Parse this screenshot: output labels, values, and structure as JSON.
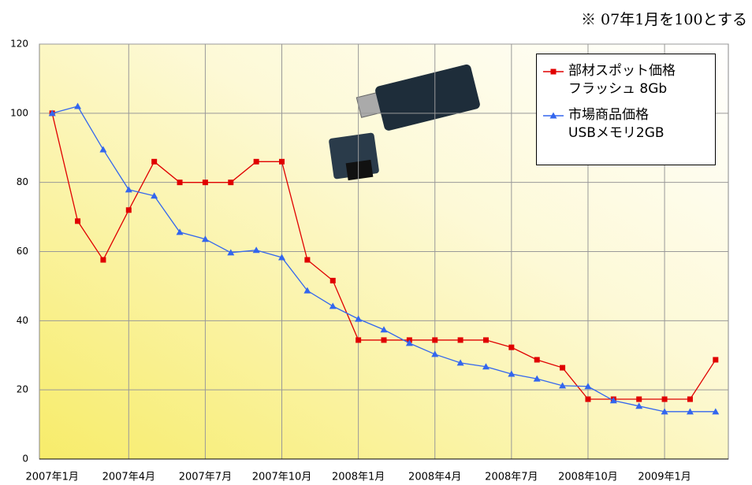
{
  "chart_data": {
    "type": "line",
    "annotation": "※ 07年1月を100とする",
    "categories": [
      "2007年1月",
      null,
      null,
      "2007年4月",
      null,
      null,
      "2007年7月",
      null,
      null,
      "2007年10月",
      null,
      null,
      "2008年1月",
      null,
      null,
      "2008年4月",
      null,
      null,
      "2008年7月",
      null,
      null,
      "2008年10月",
      null,
      null,
      "2009年1月",
      null,
      null
    ],
    "series": [
      {
        "name": "部材スポット価格\nフラッシュ 8Gb",
        "color": "#e00000",
        "marker": "square",
        "values": [
          100,
          68.8,
          57.6,
          72,
          86,
          80,
          80,
          80,
          86,
          86,
          57.6,
          51.6,
          34.4,
          34.4,
          34.4,
          34.4,
          34.4,
          34.4,
          32.3,
          28.7,
          26.4,
          17.3,
          17.3,
          17.3,
          17.3,
          17.3,
          28.7
        ]
      },
      {
        "name": "市場商品価格\nUSBメモリ2GB",
        "color": "#3366ee",
        "marker": "triangle",
        "values": [
          100,
          102,
          89.5,
          77.9,
          76.1,
          65.6,
          63.6,
          59.7,
          60.4,
          58.3,
          48.7,
          44.2,
          40.5,
          37.4,
          33.5,
          30.3,
          27.8,
          26.7,
          24.6,
          23.2,
          21.2,
          21,
          16.9,
          15.3,
          13.7,
          13.7,
          13.7
        ]
      }
    ],
    "ylim": [
      0,
      120
    ],
    "yticks": [
      0,
      20,
      40,
      60,
      80,
      100,
      120
    ],
    "grid": true,
    "legend": "top-right"
  }
}
